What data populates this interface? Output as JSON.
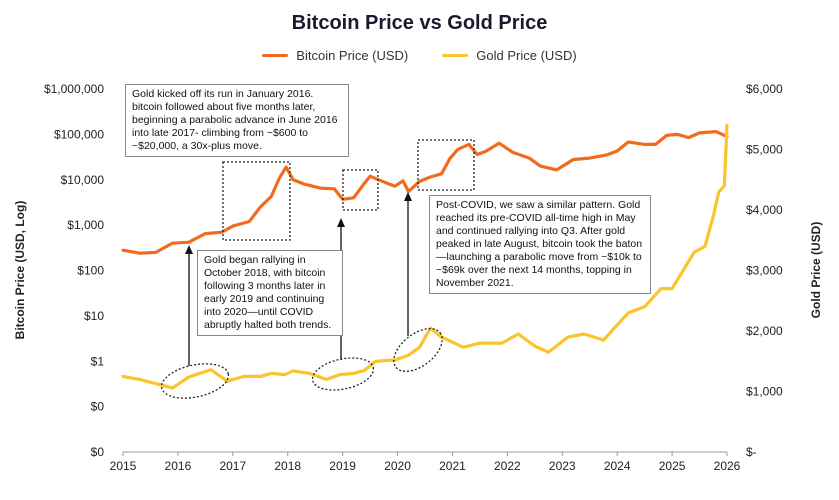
{
  "chart_data": {
    "type": "line",
    "title": "Bitcoin Price vs Gold Price",
    "legend_position": "top-center",
    "grid": false,
    "xlim": [
      2015,
      2026
    ],
    "x_ticks": [
      "2015",
      "2016",
      "2017",
      "2018",
      "2019",
      "2020",
      "2021",
      "2022",
      "2023",
      "2024",
      "2025",
      "2026"
    ],
    "ylabel_left": "Bitcoin Price (USD, Log)",
    "ylabel_right": "Gold Price (USD)",
    "y_left_scale": "log",
    "y_left_ticks": [
      "$0",
      "$0",
      "$1",
      "$10",
      "$100",
      "$1,000",
      "$10,000",
      "$100,000",
      "$1,000,000"
    ],
    "y_right_ticks": [
      "$-",
      "$1,000",
      "$2,000",
      "$3,000",
      "$4,000",
      "$5,000",
      "$6,000"
    ],
    "y_right_lim": [
      0,
      6000
    ],
    "series": [
      {
        "name": "Bitcoin Price (USD)",
        "color": "#f26b1d",
        "axis": "left",
        "points": [
          [
            2015.0,
            280
          ],
          [
            2015.3,
            240
          ],
          [
            2015.6,
            250
          ],
          [
            2015.9,
            400
          ],
          [
            2016.2,
            420
          ],
          [
            2016.5,
            650
          ],
          [
            2016.8,
            700
          ],
          [
            2017.0,
            950
          ],
          [
            2017.3,
            1200
          ],
          [
            2017.5,
            2500
          ],
          [
            2017.7,
            4300
          ],
          [
            2017.85,
            11000
          ],
          [
            2017.97,
            19000
          ],
          [
            2018.1,
            10000
          ],
          [
            2018.3,
            8000
          ],
          [
            2018.6,
            6500
          ],
          [
            2018.85,
            6300
          ],
          [
            2019.0,
            3700
          ],
          [
            2019.2,
            4000
          ],
          [
            2019.4,
            8500
          ],
          [
            2019.5,
            12000
          ],
          [
            2019.7,
            9500
          ],
          [
            2019.95,
            7200
          ],
          [
            2020.1,
            9500
          ],
          [
            2020.2,
            5500
          ],
          [
            2020.4,
            9200
          ],
          [
            2020.6,
            11500
          ],
          [
            2020.8,
            13500
          ],
          [
            2020.95,
            29000
          ],
          [
            2021.1,
            47000
          ],
          [
            2021.3,
            60000
          ],
          [
            2021.45,
            36000
          ],
          [
            2021.6,
            42000
          ],
          [
            2021.85,
            64000
          ],
          [
            2022.1,
            40000
          ],
          [
            2022.4,
            30000
          ],
          [
            2022.6,
            20000
          ],
          [
            2022.9,
            16500
          ],
          [
            2023.2,
            28000
          ],
          [
            2023.5,
            30000
          ],
          [
            2023.8,
            35000
          ],
          [
            2024.0,
            43000
          ],
          [
            2024.2,
            68000
          ],
          [
            2024.5,
            60000
          ],
          [
            2024.7,
            60000
          ],
          [
            2024.9,
            95000
          ],
          [
            2025.1,
            100000
          ],
          [
            2025.3,
            85000
          ],
          [
            2025.5,
            108000
          ],
          [
            2025.8,
            115000
          ],
          [
            2026.0,
            90000
          ]
        ]
      },
      {
        "name": "Gold Price (USD)",
        "color": "#fcc42c",
        "axis": "right",
        "points": [
          [
            2015.0,
            1250
          ],
          [
            2015.3,
            1200
          ],
          [
            2015.6,
            1130
          ],
          [
            2015.9,
            1060
          ],
          [
            2016.2,
            1240
          ],
          [
            2016.5,
            1330
          ],
          [
            2016.6,
            1360
          ],
          [
            2016.9,
            1170
          ],
          [
            2017.2,
            1250
          ],
          [
            2017.5,
            1250
          ],
          [
            2017.7,
            1300
          ],
          [
            2017.95,
            1280
          ],
          [
            2018.1,
            1340
          ],
          [
            2018.4,
            1300
          ],
          [
            2018.7,
            1200
          ],
          [
            2018.95,
            1280
          ],
          [
            2019.2,
            1300
          ],
          [
            2019.4,
            1350
          ],
          [
            2019.6,
            1500
          ],
          [
            2019.95,
            1520
          ],
          [
            2020.2,
            1600
          ],
          [
            2020.4,
            1730
          ],
          [
            2020.6,
            2050
          ],
          [
            2020.8,
            1900
          ],
          [
            2021.2,
            1730
          ],
          [
            2021.5,
            1800
          ],
          [
            2021.9,
            1800
          ],
          [
            2022.2,
            1950
          ],
          [
            2022.5,
            1750
          ],
          [
            2022.75,
            1650
          ],
          [
            2023.1,
            1900
          ],
          [
            2023.4,
            1950
          ],
          [
            2023.75,
            1850
          ],
          [
            2023.95,
            2050
          ],
          [
            2024.2,
            2300
          ],
          [
            2024.5,
            2400
          ],
          [
            2024.8,
            2700
          ],
          [
            2025.0,
            2700
          ],
          [
            2025.2,
            3000
          ],
          [
            2025.4,
            3300
          ],
          [
            2025.6,
            3400
          ],
          [
            2025.75,
            3900
          ],
          [
            2025.85,
            4300
          ],
          [
            2025.95,
            4400
          ],
          [
            2026.0,
            5400
          ]
        ]
      }
    ],
    "annotations": [
      {
        "text": "Gold kicked off its run in January 2016. bitcoin followed about five months later, beginning a parabolic advance in June 2016 into late 2017- climbing from ~$600 to ~$20,000, a 30x-plus move."
      },
      {
        "text": "Gold began rallying in October 2018, with bitcoin following  3 months later in early 2019 and continuing into 2020—until COVID abruptly halted both trends."
      },
      {
        "text": "Post-COVID, we saw a similar pattern. Gold reached its pre-COVID all-time high in May and continued rallying into Q3. After gold peaked in late August, bitcoin took the baton—launching a parabolic move from ~$10k to ~$69k over the next 14 months, topping in November 2021."
      }
    ]
  }
}
